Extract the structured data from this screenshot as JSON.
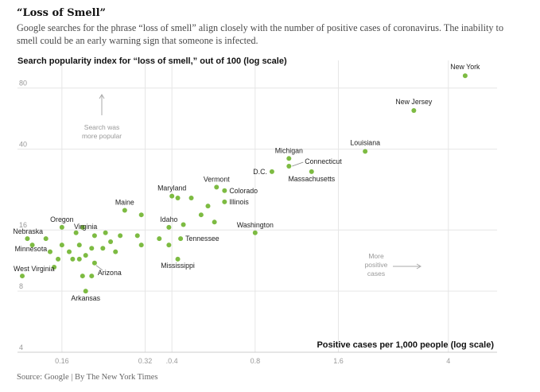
{
  "header": {
    "title": "“Loss of Smell”",
    "subtitle": "Google searches for the phrase “loss of smell” align closely with the number of positive cases of coronavirus. The inability to smell could be an early warning sign that someone is infected."
  },
  "footer": {
    "source": "Source: Google | By The New York Times"
  },
  "colors": {
    "point": "#7dbb42",
    "grid": "#e6e6e6",
    "axis": "#cccccc"
  },
  "chart_data": {
    "type": "scatter",
    "title": "",
    "ylabel": "Search popularity index for “loss of smell,” out of 100 (log scale)",
    "xlabel": "Positive cases per 1,000 people (log scale)",
    "x_scale": "log",
    "y_scale": "log",
    "xlim": [
      0.115,
      6
    ],
    "ylim": [
      4,
      100
    ],
    "x_ticks": [
      {
        "value": 0.16,
        "label": "0.16"
      },
      {
        "value": 0.32,
        "label": "0.32"
      },
      {
        "value": 0.4,
        "label": ".0.4"
      },
      {
        "value": 0.8,
        "label": "0.8"
      },
      {
        "value": 1.6,
        "label": "1.6"
      },
      {
        "value": 4,
        "label": "4"
      }
    ],
    "y_ticks": [
      {
        "value": 80,
        "label": "80"
      },
      {
        "value": 40,
        "label": "40"
      },
      {
        "value": 16,
        "label": "16"
      },
      {
        "value": 8,
        "label": "8"
      },
      {
        "value": 4,
        "label": "4"
      }
    ],
    "grid": true,
    "annotations": {
      "search_more_popular": [
        "Search was",
        "more popular"
      ],
      "more_positive_cases": [
        "More",
        "positive",
        "cases"
      ]
    },
    "points": [
      {
        "label": "New York",
        "x": 4.6,
        "y": 92
      },
      {
        "label": "New Jersey",
        "x": 3.0,
        "y": 62
      },
      {
        "label": "Louisiana",
        "x": 2.0,
        "y": 39
      },
      {
        "label": "Michigan",
        "x": 1.06,
        "y": 36
      },
      {
        "label": "Connecticut",
        "x": 1.06,
        "y": 33
      },
      {
        "label": "Massachusetts",
        "x": 1.28,
        "y": 31
      },
      {
        "label": "D.C.",
        "x": 0.92,
        "y": 31
      },
      {
        "label": "Vermont",
        "x": 0.58,
        "y": 26
      },
      {
        "label": "Colorado",
        "x": 0.62,
        "y": 25
      },
      {
        "label": "Maryland",
        "x": 0.4,
        "y": 23.5
      },
      {
        "label": "Illinois",
        "x": 0.62,
        "y": 22
      },
      {
        "label": "Washington",
        "x": 0.8,
        "y": 15.5
      },
      {
        "label": "Maine",
        "x": 0.27,
        "y": 20
      },
      {
        "label": "Idaho",
        "x": 0.39,
        "y": 16.5
      },
      {
        "label": "Oregon",
        "x": 0.16,
        "y": 16.5
      },
      {
        "label": "Virginia",
        "x": 0.18,
        "y": 15.5
      },
      {
        "label": "Nebraska",
        "x": 0.12,
        "y": 14.5
      },
      {
        "label": "Minnesota",
        "x": 0.125,
        "y": 13.5
      },
      {
        "label": "Tennessee",
        "x": 0.43,
        "y": 14.5
      },
      {
        "label": "Mississippi",
        "x": 0.42,
        "y": 11.5
      },
      {
        "label": "West Virginia",
        "x": 0.115,
        "y": 9.5
      },
      {
        "label": "Arizona",
        "x": 0.21,
        "y": 11.0
      },
      {
        "label": "Arkansas",
        "x": 0.195,
        "y": 8.0
      },
      {
        "label": "",
        "x": 0.42,
        "y": 23
      },
      {
        "label": "",
        "x": 0.47,
        "y": 23
      },
      {
        "label": "",
        "x": 0.54,
        "y": 21
      },
      {
        "label": "",
        "x": 0.31,
        "y": 19
      },
      {
        "label": "",
        "x": 0.51,
        "y": 19
      },
      {
        "label": "",
        "x": 0.44,
        "y": 17
      },
      {
        "label": "",
        "x": 0.57,
        "y": 17.5
      },
      {
        "label": "",
        "x": 0.21,
        "y": 15
      },
      {
        "label": "",
        "x": 0.23,
        "y": 15.5
      },
      {
        "label": "",
        "x": 0.26,
        "y": 15
      },
      {
        "label": "",
        "x": 0.19,
        "y": 16.5
      },
      {
        "label": "",
        "x": 0.14,
        "y": 14.5
      },
      {
        "label": "",
        "x": 0.3,
        "y": 15
      },
      {
        "label": "",
        "x": 0.36,
        "y": 14.5
      },
      {
        "label": "",
        "x": 0.24,
        "y": 14.0
      },
      {
        "label": "",
        "x": 0.16,
        "y": 13.5
      },
      {
        "label": "",
        "x": 0.185,
        "y": 13.5
      },
      {
        "label": "",
        "x": 0.205,
        "y": 13.0
      },
      {
        "label": "",
        "x": 0.225,
        "y": 13.0
      },
      {
        "label": "",
        "x": 0.31,
        "y": 13.5
      },
      {
        "label": "",
        "x": 0.39,
        "y": 13.5
      },
      {
        "label": "",
        "x": 0.145,
        "y": 12.5
      },
      {
        "label": "",
        "x": 0.17,
        "y": 12.5
      },
      {
        "label": "",
        "x": 0.195,
        "y": 12.0
      },
      {
        "label": "",
        "x": 0.25,
        "y": 12.5
      },
      {
        "label": "",
        "x": 0.155,
        "y": 11.5
      },
      {
        "label": "",
        "x": 0.175,
        "y": 11.5
      },
      {
        "label": "",
        "x": 0.185,
        "y": 11.5
      },
      {
        "label": "",
        "x": 0.15,
        "y": 10.5
      },
      {
        "label": "",
        "x": 0.19,
        "y": 9.5
      },
      {
        "label": "",
        "x": 0.205,
        "y": 9.5
      }
    ]
  }
}
